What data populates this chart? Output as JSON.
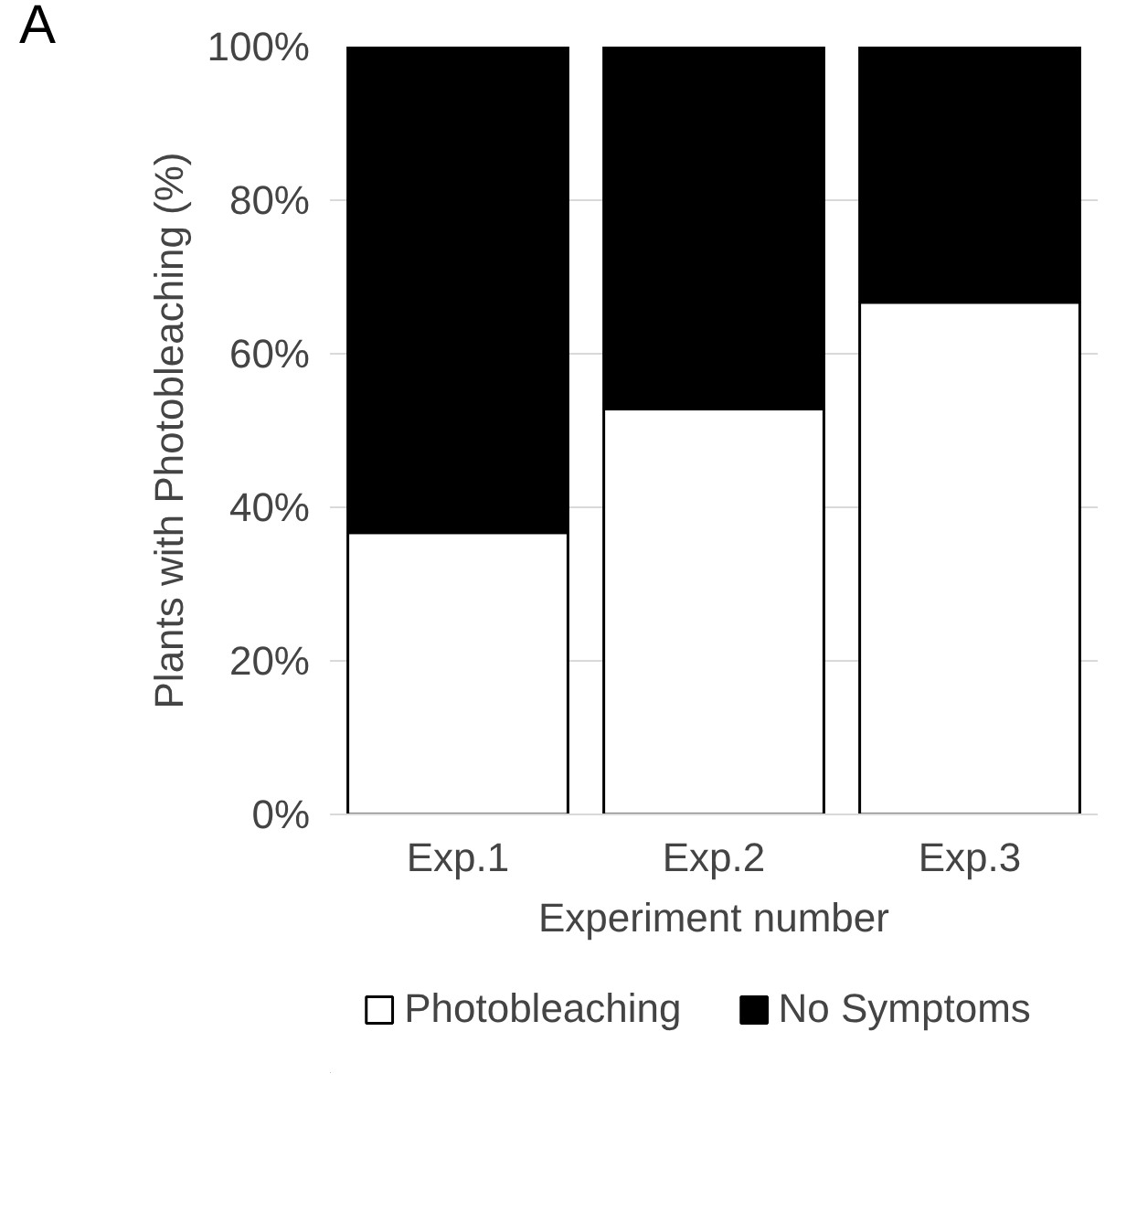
{
  "chart_data": {
    "type": "bar",
    "stacked": true,
    "ylabel": "Plants with Photobleaching (%)",
    "xlabel": "Experiment number",
    "annotations": [
      "A"
    ],
    "categories": [
      "Exp.1",
      "Exp.2",
      "Exp.3"
    ],
    "series": [
      {
        "name": "Photobleaching",
        "color": "#ffffff",
        "values": [
          36.7,
          52.8,
          66.7
        ]
      },
      {
        "name": "No Symptoms",
        "color": "#000000",
        "values": [
          63.3,
          47.2,
          33.3
        ]
      }
    ],
    "ylim": [
      0,
      100
    ],
    "yticks": [
      {
        "value": 0,
        "label": "0%"
      },
      {
        "value": 20,
        "label": "20%"
      },
      {
        "value": 40,
        "label": "40%"
      },
      {
        "value": 60,
        "label": "60%"
      },
      {
        "value": 80,
        "label": "80%"
      },
      {
        "value": 100,
        "label": "100%"
      }
    ],
    "grid": "y",
    "legend": "bottom"
  }
}
